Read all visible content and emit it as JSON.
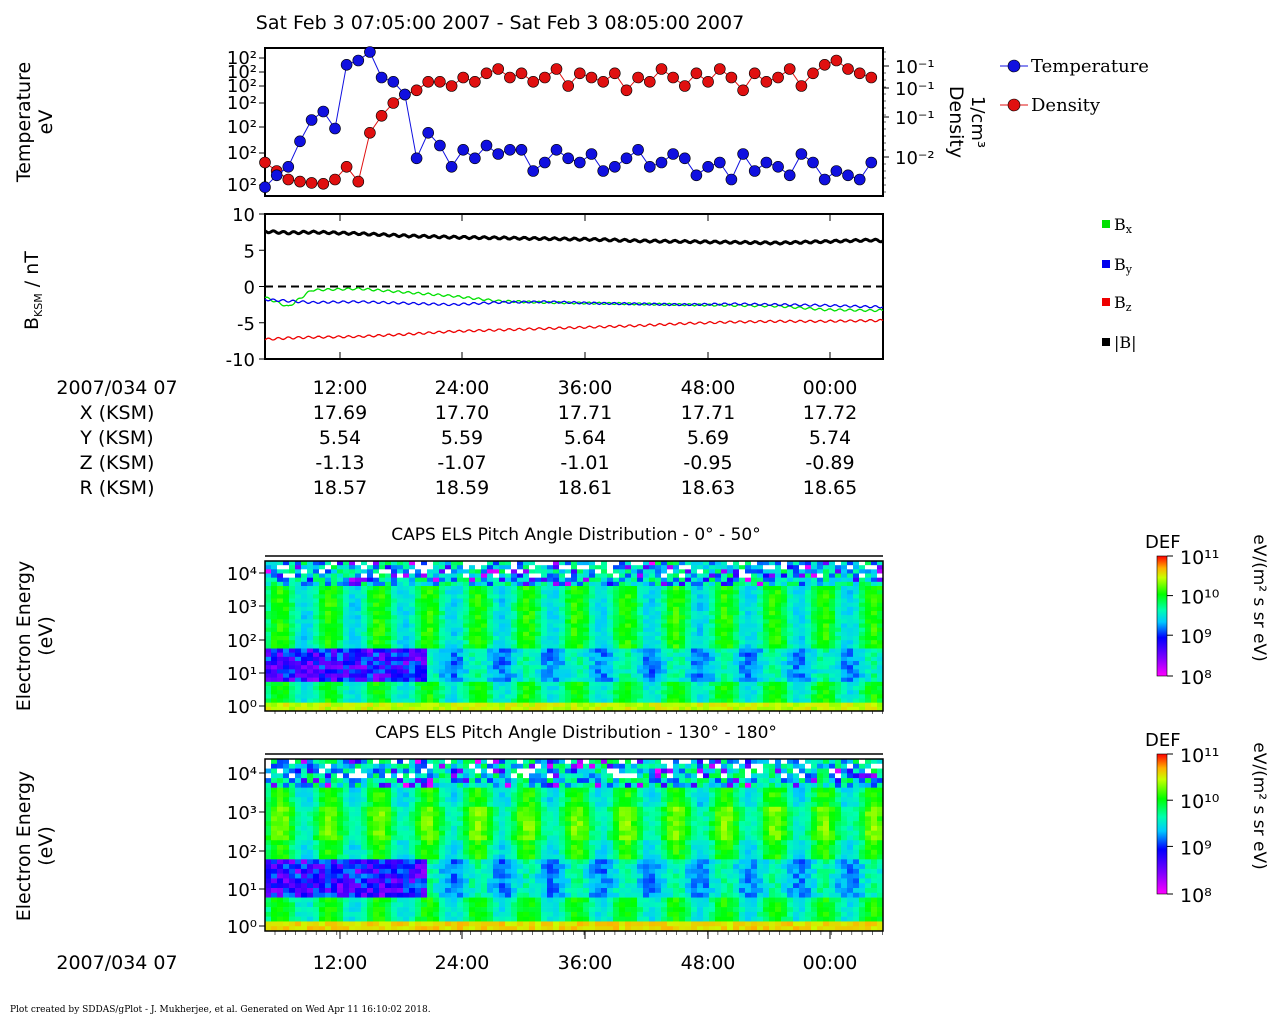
{
  "title": "Sat Feb 3 07:05:00 2007 - Sat Feb 3 08:05:00 2007",
  "footer": "Plot created by SDDAS/gPlot - J. Mukherjee, et al.  Generated on Wed Apr 11 16:10:02 2018.",
  "colors": {
    "temperature": "#1010e0",
    "density": "#e01010",
    "bx": "#00e000",
    "by": "#0000ee",
    "bz": "#ee0000",
    "bmag": "#000000"
  },
  "chart_data": [
    {
      "type": "scatter",
      "ylabel_left": [
        "Temperature",
        "eV"
      ],
      "ylabel_right": [
        "Density",
        "1/cm³"
      ],
      "left_ticks": [
        "10²",
        "10²",
        "10²",
        "10²",
        "10²",
        "10²",
        "10²"
      ],
      "right_ticks": [
        "10⁻¹",
        "10⁻¹",
        "10⁻¹",
        "10⁻²"
      ],
      "legend": [
        "Temperature",
        "Density"
      ],
      "legend_position": "right",
      "x_range": [
        6,
        59
      ],
      "series": [
        {
          "name": "Temperature",
          "x": [
            6,
            7,
            8,
            9,
            10,
            11,
            12,
            13,
            14,
            15,
            16,
            17,
            18,
            19,
            20,
            21,
            22,
            23,
            24,
            25,
            26,
            27,
            28,
            29,
            30,
            31,
            32,
            33,
            34,
            35,
            36,
            37,
            38,
            39,
            40,
            41,
            42,
            43,
            44,
            45,
            46,
            47,
            48,
            49,
            50,
            51,
            52,
            53,
            54,
            55,
            56,
            57,
            58
          ],
          "y": [
            0.02,
            0.3,
            0.5,
            1.1,
            1.6,
            1.8,
            1.4,
            2.9,
            3.0,
            3.2,
            2.6,
            2.5,
            2.2,
            0.7,
            1.3,
            1.0,
            0.5,
            0.9,
            0.7,
            1.0,
            0.8,
            0.9,
            0.9,
            0.4,
            0.6,
            0.9,
            0.7,
            0.6,
            0.8,
            0.4,
            0.5,
            0.7,
            0.9,
            0.5,
            0.6,
            0.8,
            0.7,
            0.3,
            0.5,
            0.6,
            0.2,
            0.8,
            0.4,
            0.6,
            0.5,
            0.3,
            0.8,
            0.6,
            0.2,
            0.4,
            0.3,
            0.2,
            0.6
          ]
        },
        {
          "name": "Density",
          "x": [
            6,
            7,
            8,
            9,
            10,
            11,
            12,
            13,
            14,
            15,
            16,
            17,
            18,
            19,
            20,
            21,
            22,
            23,
            24,
            25,
            26,
            27,
            28,
            29,
            30,
            31,
            32,
            33,
            34,
            35,
            36,
            37,
            38,
            39,
            40,
            41,
            42,
            43,
            44,
            45,
            46,
            47,
            48,
            49,
            50,
            51,
            52,
            53,
            54,
            55,
            56,
            57,
            58
          ],
          "y": [
            0.6,
            0.4,
            0.2,
            0.15,
            0.12,
            0.1,
            0.2,
            0.5,
            0.15,
            1.3,
            1.7,
            2.0,
            2.2,
            2.3,
            2.5,
            2.5,
            2.4,
            2.6,
            2.5,
            2.7,
            2.8,
            2.6,
            2.7,
            2.5,
            2.6,
            2.8,
            2.4,
            2.7,
            2.6,
            2.5,
            2.7,
            2.3,
            2.6,
            2.5,
            2.8,
            2.6,
            2.4,
            2.7,
            2.5,
            2.8,
            2.6,
            2.3,
            2.7,
            2.5,
            2.6,
            2.8,
            2.4,
            2.7,
            2.9,
            3.0,
            2.8,
            2.7,
            2.6
          ]
        }
      ]
    },
    {
      "type": "line",
      "ylabel": "B_KSM / nT",
      "ylim": [
        -10,
        10
      ],
      "yticks": [
        "10",
        "5",
        "0",
        "-5",
        "-10"
      ],
      "x_range": [
        6,
        59
      ],
      "legend": [
        "Bx",
        "By",
        "Bz",
        "|B|"
      ],
      "series": [
        {
          "name": "Bx",
          "x": [
            6,
            8,
            10,
            14,
            18,
            22,
            26,
            30,
            34,
            38,
            42,
            46,
            50,
            54,
            58,
            59
          ],
          "y": [
            -1.5,
            -2.8,
            -0.5,
            -0.3,
            -0.8,
            -1.3,
            -2.0,
            -2.2,
            -2.3,
            -2.4,
            -2.5,
            -2.6,
            -2.7,
            -3.2,
            -3.3,
            -3.3
          ]
        },
        {
          "name": "By",
          "x": [
            6,
            8,
            10,
            14,
            18,
            22,
            26,
            30,
            34,
            38,
            42,
            46,
            50,
            54,
            58,
            59
          ],
          "y": [
            -1.8,
            -2.0,
            -2.2,
            -2.1,
            -2.3,
            -2.5,
            -2.2,
            -2.1,
            -2.3,
            -2.4,
            -2.5,
            -2.4,
            -2.5,
            -2.6,
            -2.8,
            -2.8
          ]
        },
        {
          "name": "Bz",
          "x": [
            6,
            8,
            10,
            14,
            18,
            22,
            26,
            30,
            34,
            38,
            42,
            46,
            50,
            54,
            58,
            59
          ],
          "y": [
            -7.3,
            -7.1,
            -7.0,
            -6.9,
            -6.6,
            -6.2,
            -6.0,
            -5.8,
            -5.6,
            -5.4,
            -5.1,
            -4.9,
            -4.8,
            -4.8,
            -4.7,
            -4.7
          ]
        },
        {
          "name": "|B|",
          "x": [
            6,
            8,
            10,
            14,
            18,
            22,
            26,
            30,
            34,
            38,
            42,
            46,
            50,
            54,
            58,
            59
          ],
          "y": [
            7.6,
            7.4,
            7.5,
            7.3,
            7.0,
            6.8,
            6.7,
            6.6,
            6.5,
            6.3,
            6.2,
            6.1,
            6.0,
            6.2,
            6.4,
            6.3
          ]
        }
      ]
    },
    {
      "type": "heatmap",
      "title": "CAPS ELS Pitch Angle Distribution - 0° - 50°",
      "ylabel": [
        "Electron Energy",
        "(eV)"
      ],
      "yticks": [
        "10⁴",
        "10³",
        "10²",
        "10¹",
        "10⁰"
      ],
      "colorbar_label": "DEF",
      "colorbar_units": "eV/(m² s sr eV)",
      "colorbar_ticks": [
        "10¹¹",
        "10¹⁰",
        "10⁹",
        "10⁸"
      ]
    },
    {
      "type": "heatmap",
      "title": "CAPS ELS Pitch Angle Distribution - 130° - 180°",
      "ylabel": [
        "Electron Energy",
        "(eV)"
      ],
      "yticks": [
        "10⁴",
        "10³",
        "10²",
        "10¹",
        "10⁰"
      ],
      "colorbar_label": "DEF",
      "colorbar_units": "eV/(m² s sr eV)",
      "colorbar_ticks": [
        "10¹¹",
        "10¹⁰",
        "10⁹",
        "10⁸"
      ]
    }
  ],
  "ephemeris": {
    "row_labels": [
      "2007/034 07",
      "X (KSM)",
      "Y (KSM)",
      "Z (KSM)",
      "R (KSM)"
    ],
    "columns": [
      [
        "12:00",
        "17.69",
        "5.54",
        "-1.13",
        "18.57"
      ],
      [
        "24:00",
        "17.70",
        "5.59",
        "-1.07",
        "18.59"
      ],
      [
        "36:00",
        "17.71",
        "5.64",
        "-1.01",
        "18.61"
      ],
      [
        "48:00",
        "17.71",
        "5.69",
        "-0.95",
        "18.63"
      ],
      [
        "00:00",
        "17.72",
        "5.74",
        "-0.89",
        "18.65"
      ]
    ]
  },
  "bottom_axis": {
    "label": "2007/034 07",
    "ticks": [
      "12:00",
      "24:00",
      "36:00",
      "48:00",
      "00:00"
    ]
  }
}
